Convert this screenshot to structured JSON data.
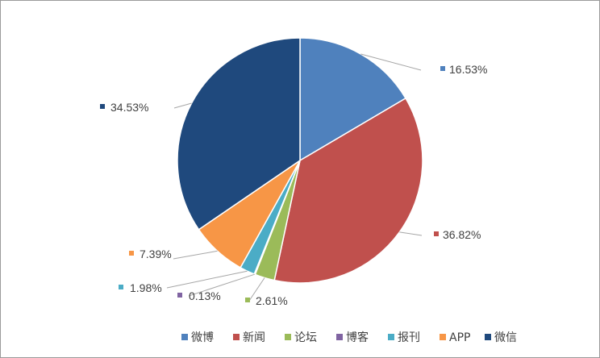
{
  "chart_data": {
    "type": "pie",
    "title": "",
    "categories": [
      "微博",
      "新闻",
      "论坛",
      "博客",
      "报刊",
      "APP",
      "微信"
    ],
    "values": [
      16.53,
      36.82,
      2.61,
      0.13,
      1.98,
      7.39,
      34.53
    ],
    "data_labels": [
      "16.53%",
      "36.82%",
      "2.61%",
      "0.13%",
      "1.98%",
      "7.39%",
      "34.53%"
    ],
    "colors": [
      "#4F81BD",
      "#C0504D",
      "#9BBB59",
      "#8064A2",
      "#4BACC6",
      "#F79646",
      "#1F497D"
    ],
    "start_angle": "12 o'clock",
    "direction": "clockwise",
    "legend_position": "bottom-right"
  }
}
